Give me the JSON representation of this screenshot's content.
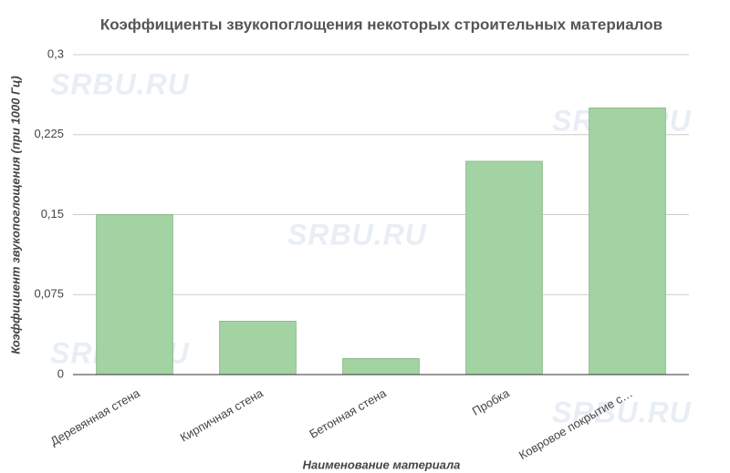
{
  "chart_data": {
    "type": "bar",
    "title": "Коэффициенты звукопоглощения некоторых строительных материалов",
    "x_label": "Наименование материала",
    "y_label": "Коэффициент звукопоглощения (при 1000 Гц)",
    "watermark": "SRBU.RU",
    "categories": [
      "Деревянная стена",
      "Кирпичная стена",
      "Бетонная стена",
      "Пробка",
      "Ковровое покрытие с…"
    ],
    "values": [
      0.15,
      0.05,
      0.015,
      0.2,
      0.25
    ],
    "color": "#a3d3a3",
    "ylim": [
      0,
      0.3
    ],
    "yticks": [
      0,
      {
        "value": 0.075,
        "label": "0,075"
      },
      {
        "value": 0.15,
        "label": "0,15"
      },
      {
        "value": 0.225,
        "label": "0,225"
      },
      {
        "value": 0.3,
        "label": "0,3"
      }
    ],
    "grid": true
  }
}
